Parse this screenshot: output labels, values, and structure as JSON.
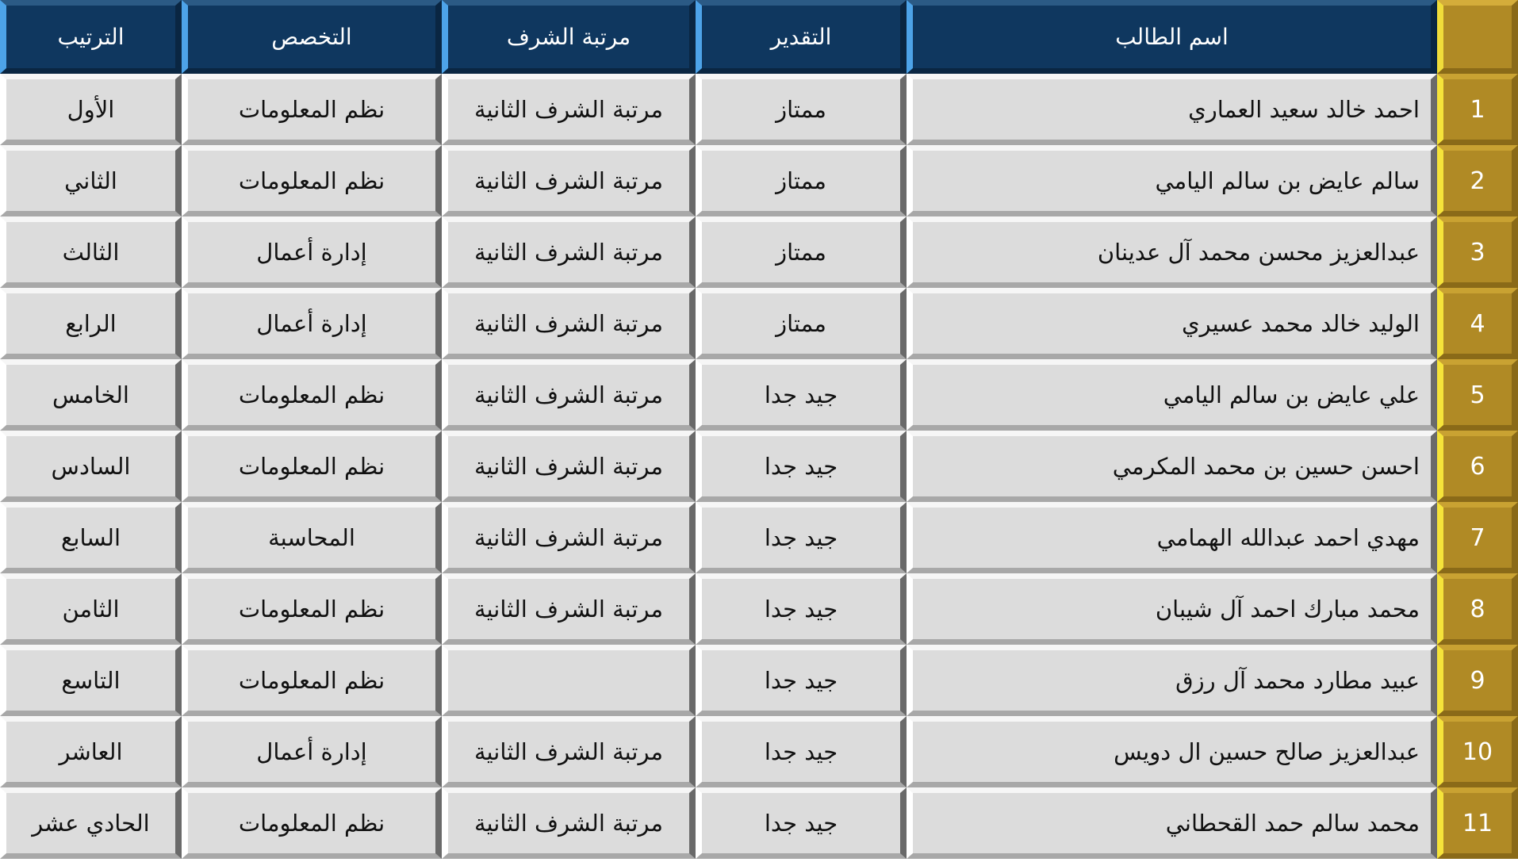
{
  "headers": {
    "number": "",
    "name": "اسم الطالب",
    "grade": "التقدير",
    "honor": "مرتبة الشرف",
    "major": "التخصص",
    "rank": "الترتيب"
  },
  "rows": [
    {
      "number": "1",
      "name": "احمد خالد سعيد العماري",
      "grade": "ممتاز",
      "honor": "مرتبة الشرف الثانية",
      "major": "نظم المعلومات",
      "rank": "الأول"
    },
    {
      "number": "2",
      "name": "سالم عايض بن سالم اليامي",
      "grade": "ممتاز",
      "honor": "مرتبة الشرف الثانية",
      "major": "نظم المعلومات",
      "rank": "الثاني"
    },
    {
      "number": "3",
      "name": "عبدالعزيز محسن محمد آل عدينان",
      "grade": "ممتاز",
      "honor": "مرتبة الشرف الثانية",
      "major": "إدارة أعمال",
      "rank": "الثالث"
    },
    {
      "number": "4",
      "name": "الوليد خالد محمد عسيري",
      "grade": "ممتاز",
      "honor": "مرتبة الشرف الثانية",
      "major": "إدارة أعمال",
      "rank": "الرابع"
    },
    {
      "number": "5",
      "name": "علي عايض بن سالم اليامي",
      "grade": "جيد جدا",
      "honor": "مرتبة الشرف الثانية",
      "major": "نظم المعلومات",
      "rank": "الخامس"
    },
    {
      "number": "6",
      "name": "احسن حسين بن محمد المكرمي",
      "grade": "جيد جدا",
      "honor": "مرتبة الشرف الثانية",
      "major": "نظم المعلومات",
      "rank": "السادس"
    },
    {
      "number": "7",
      "name": "مهدي احمد عبدالله الهمامي",
      "grade": "جيد جدا",
      "honor": "مرتبة الشرف الثانية",
      "major": "المحاسبة",
      "rank": "السابع"
    },
    {
      "number": "8",
      "name": "محمد مبارك احمد آل شيبان",
      "grade": "جيد جدا",
      "honor": "مرتبة الشرف الثانية",
      "major": "نظم المعلومات",
      "rank": "الثامن"
    },
    {
      "number": "9",
      "name": "عبيد مطارد محمد آل رزق",
      "grade": "جيد جدا",
      "honor": "",
      "major": "نظم المعلومات",
      "rank": "التاسع"
    },
    {
      "number": "10",
      "name": "عبدالعزيز صالح حسين ال دويس",
      "grade": "جيد جدا",
      "honor": "مرتبة الشرف الثانية",
      "major": "إدارة أعمال",
      "rank": "العاشر"
    },
    {
      "number": "11",
      "name": "محمد سالم حمد القحطاني",
      "grade": "جيد جدا",
      "honor": "مرتبة الشرف الثانية",
      "major": "نظم المعلومات",
      "rank": "الحادي عشر"
    }
  ],
  "colors": {
    "header": "#0f375f",
    "number_column": "#b08a25",
    "cell": "#dcdcdc"
  }
}
